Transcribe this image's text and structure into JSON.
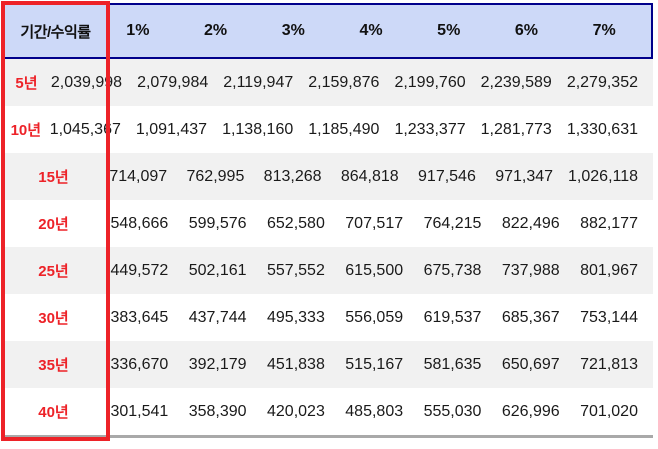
{
  "colors": {
    "header_bg": "#cdd9f8",
    "header_border": "#00008b",
    "highlight_red": "#ed2228",
    "row_alt_bg": "#f1f1f1",
    "row_bg": "#ffffff",
    "bottom_border": "#a9a9a9",
    "label_red": "#ed2228",
    "text": "#1a1a1a"
  },
  "chart_data": {
    "type": "table",
    "title": "",
    "corner_label": "기간/수익률",
    "columns": [
      "1%",
      "2%",
      "3%",
      "4%",
      "5%",
      "6%",
      "7%"
    ],
    "rows": [
      {
        "label": "5년",
        "values": [
          "2,039,998",
          "2,079,984",
          "2,119,947",
          "2,159,876",
          "2,199,760",
          "2,239,589",
          "2,279,352"
        ]
      },
      {
        "label": "10년",
        "values": [
          "1,045,367",
          "1,091,437",
          "1,138,160",
          "1,185,490",
          "1,233,377",
          "1,281,773",
          "1,330,631"
        ]
      },
      {
        "label": "15년",
        "values": [
          "714,097",
          "762,995",
          "813,268",
          "864,818",
          "917,546",
          "971,347",
          "1,026,118"
        ]
      },
      {
        "label": "20년",
        "values": [
          "548,666",
          "599,576",
          "652,580",
          "707,517",
          "764,215",
          "822,496",
          "882,177"
        ]
      },
      {
        "label": "25년",
        "values": [
          "449,572",
          "502,161",
          "557,552",
          "615,500",
          "675,738",
          "737,988",
          "801,967"
        ]
      },
      {
        "label": "30년",
        "values": [
          "383,645",
          "437,744",
          "495,333",
          "556,059",
          "619,537",
          "685,367",
          "753,144"
        ]
      },
      {
        "label": "35년",
        "values": [
          "336,670",
          "392,179",
          "451,838",
          "515,167",
          "581,635",
          "650,697",
          "721,813"
        ]
      },
      {
        "label": "40년",
        "values": [
          "301,541",
          "358,390",
          "420,023",
          "485,803",
          "555,030",
          "626,996",
          "701,020"
        ]
      }
    ]
  }
}
